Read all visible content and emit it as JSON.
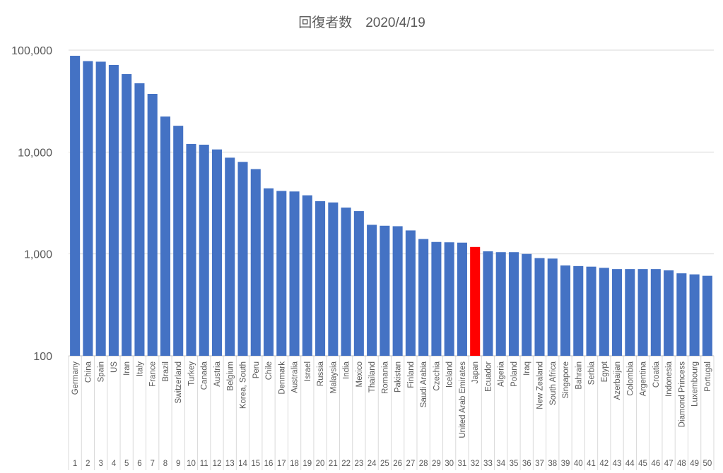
{
  "chart_data": {
    "type": "bar",
    "title": "回復者数　2020/4/19",
    "yscale": "log",
    "ylim": [
      100,
      100000
    ],
    "yticks": [
      "100",
      "1,000",
      "10,000",
      "100,000"
    ],
    "grid": true,
    "bar_color": "#4472C4",
    "highlight_color": "#FF0000",
    "highlight_category": "Japan",
    "ranks": [
      "1",
      "2",
      "3",
      "4",
      "5",
      "6",
      "7",
      "8",
      "9",
      "10",
      "11",
      "12",
      "13",
      "14",
      "15",
      "16",
      "17",
      "18",
      "19",
      "20",
      "21",
      "22",
      "23",
      "24",
      "25",
      "26",
      "27",
      "28",
      "29",
      "30",
      "31",
      "32",
      "33",
      "34",
      "35",
      "36",
      "37",
      "38",
      "39",
      "40",
      "41",
      "42",
      "43",
      "44",
      "45",
      "46",
      "47",
      "48",
      "49",
      "50"
    ],
    "categories": [
      "Germany",
      "China",
      "Spain",
      "US",
      "Iran",
      "Italy",
      "France",
      "Brazil",
      "Switzerland",
      "Turkey",
      "Canada",
      "Austria",
      "Belgium",
      "Korea, South",
      "Peru",
      "Chile",
      "Denmark",
      "Australia",
      "Israel",
      "Russia",
      "Malaysia",
      "India",
      "Mexico",
      "Thailand",
      "Romania",
      "Pakistan",
      "Finland",
      "Saudi Arabia",
      "Czechia",
      "Iceland",
      "United Arab Emirates",
      "Japan",
      "Ecuador",
      "Algeria",
      "Poland",
      "Iraq",
      "New Zealand",
      "South Africa",
      "Singapore",
      "Bahrain",
      "Serbia",
      "Egypt",
      "Azerbaijan",
      "Colombia",
      "Argentina",
      "Croatia",
      "Indonesia",
      "Diamond Princess",
      "Luxembourg",
      "Portugal"
    ],
    "values": [
      88000,
      78000,
      77000,
      71600,
      58200,
      47300,
      37200,
      22300,
      18100,
      12000,
      11800,
      10600,
      8800,
      8000,
      6800,
      4400,
      4150,
      4100,
      3760,
      3290,
      3200,
      2850,
      2630,
      1930,
      1890,
      1870,
      1700,
      1400,
      1310,
      1300,
      1290,
      1170,
      1060,
      1040,
      1040,
      1000,
      910,
      900,
      770,
      760,
      750,
      730,
      710,
      710,
      710,
      710,
      690,
      645,
      630,
      610
    ]
  }
}
